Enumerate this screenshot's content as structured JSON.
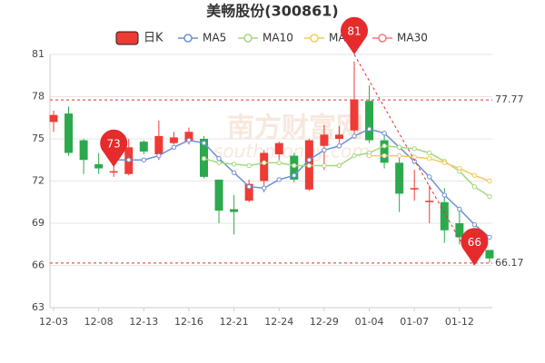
{
  "chart_data": {
    "type": "candlestick",
    "title": "美畅股份(300861)",
    "watermark": "南方财富网",
    "watermark_sub": "southmoney.com",
    "categories": [
      "12-03",
      null,
      null,
      "12-08",
      null,
      null,
      "12-13",
      null,
      null,
      "12-16",
      null,
      null,
      "12-21",
      null,
      null,
      "12-24",
      null,
      null,
      "12-29",
      null,
      null,
      "01-04",
      null,
      null,
      "01-07",
      null,
      null,
      "01-12",
      null,
      null
    ],
    "candles": {
      "name": "日K",
      "up_color": "#ee3b36",
      "down_color": "#2ca94d",
      "open": [
        76.2,
        76.8,
        74.9,
        73.2,
        72.6,
        72.5,
        74.8,
        73.9,
        74.7,
        74.8,
        75.0,
        72.1,
        70.0,
        70.6,
        72.0,
        73.9,
        73.8,
        71.4,
        74.5,
        75.0,
        75.6,
        77.7,
        74.9,
        73.3,
        71.4,
        70.5,
        70.5,
        69.0,
        68.0,
        67.1
      ],
      "high": [
        77.0,
        77.3,
        75.0,
        74.0,
        73.5,
        75.0,
        74.9,
        76.3,
        75.5,
        75.8,
        75.2,
        72.1,
        71.0,
        72.1,
        74.2,
        74.8,
        74.0,
        75.0,
        76.0,
        75.9,
        80.5,
        78.8,
        75.5,
        73.7,
        72.8,
        71.7,
        71.5,
        69.9,
        68.2,
        67.1
      ],
      "low": [
        75.5,
        73.8,
        72.5,
        72.5,
        72.3,
        72.4,
        73.9,
        73.5,
        74.6,
        74.6,
        72.2,
        69.0,
        68.2,
        70.5,
        71.2,
        73.5,
        71.9,
        71.3,
        72.8,
        74.7,
        75.0,
        74.7,
        72.9,
        69.8,
        70.6,
        69.0,
        67.6,
        67.5,
        66.2,
        66.2
      ],
      "close": [
        76.7,
        74.0,
        73.5,
        72.9,
        72.7,
        74.4,
        74.1,
        75.2,
        75.1,
        75.5,
        72.3,
        69.9,
        69.8,
        71.8,
        74.0,
        74.7,
        72.1,
        74.9,
        75.3,
        75.3,
        77.8,
        74.9,
        73.3,
        71.1,
        71.5,
        70.6,
        68.5,
        68.0,
        66.7,
        66.5
      ]
    },
    "series": [
      {
        "name": "MA5",
        "color": "#6d8fd8",
        "values": [
          null,
          null,
          null,
          null,
          73.5,
          73.5,
          73.5,
          73.8,
          74.4,
          74.9,
          74.7,
          73.6,
          72.6,
          71.6,
          71.5,
          72.1,
          72.4,
          73.5,
          74.2,
          74.5,
          75.2,
          75.7,
          75.4,
          74.4,
          73.4,
          72.3,
          71.0,
          70.0,
          68.9,
          68.0
        ]
      },
      {
        "name": "MA10",
        "color": "#a3d87e",
        "values": [
          null,
          null,
          null,
          null,
          null,
          null,
          null,
          null,
          null,
          null,
          73.6,
          73.3,
          73.2,
          73.1,
          73.3,
          73.3,
          73.1,
          73.1,
          73.1,
          73.1,
          73.8,
          74.0,
          74.5,
          74.4,
          74.3,
          74.0,
          73.4,
          72.7,
          71.6,
          70.9
        ]
      },
      {
        "name": "MA20",
        "color": "#f6c95c",
        "values": [
          null,
          null,
          null,
          null,
          null,
          null,
          null,
          null,
          null,
          null,
          null,
          null,
          null,
          null,
          null,
          null,
          null,
          null,
          null,
          null,
          null,
          73.8,
          73.8,
          73.8,
          73.7,
          73.6,
          73.3,
          72.9,
          72.4,
          72.0
        ]
      },
      {
        "name": "MA30",
        "color": "#ef7a7a",
        "values": [
          null,
          null,
          null,
          null,
          null,
          null,
          null,
          null,
          null,
          null,
          null,
          null,
          null,
          null,
          null,
          null,
          null,
          null,
          null,
          null,
          null,
          null,
          null,
          null,
          null,
          null,
          null,
          null,
          null,
          null
        ]
      }
    ],
    "hlines": [
      77.77,
      66.17
    ],
    "hline_color": "#e03030",
    "annotations": [
      {
        "index": 4,
        "value": 73
      },
      {
        "index": 20,
        "value": 81
      },
      {
        "index": 28,
        "value": 66
      }
    ],
    "annotation_color": "#e52b2b",
    "ylim": [
      63,
      81
    ],
    "yticks": [
      63,
      66,
      69,
      72,
      75,
      78,
      81
    ],
    "grid": true
  }
}
